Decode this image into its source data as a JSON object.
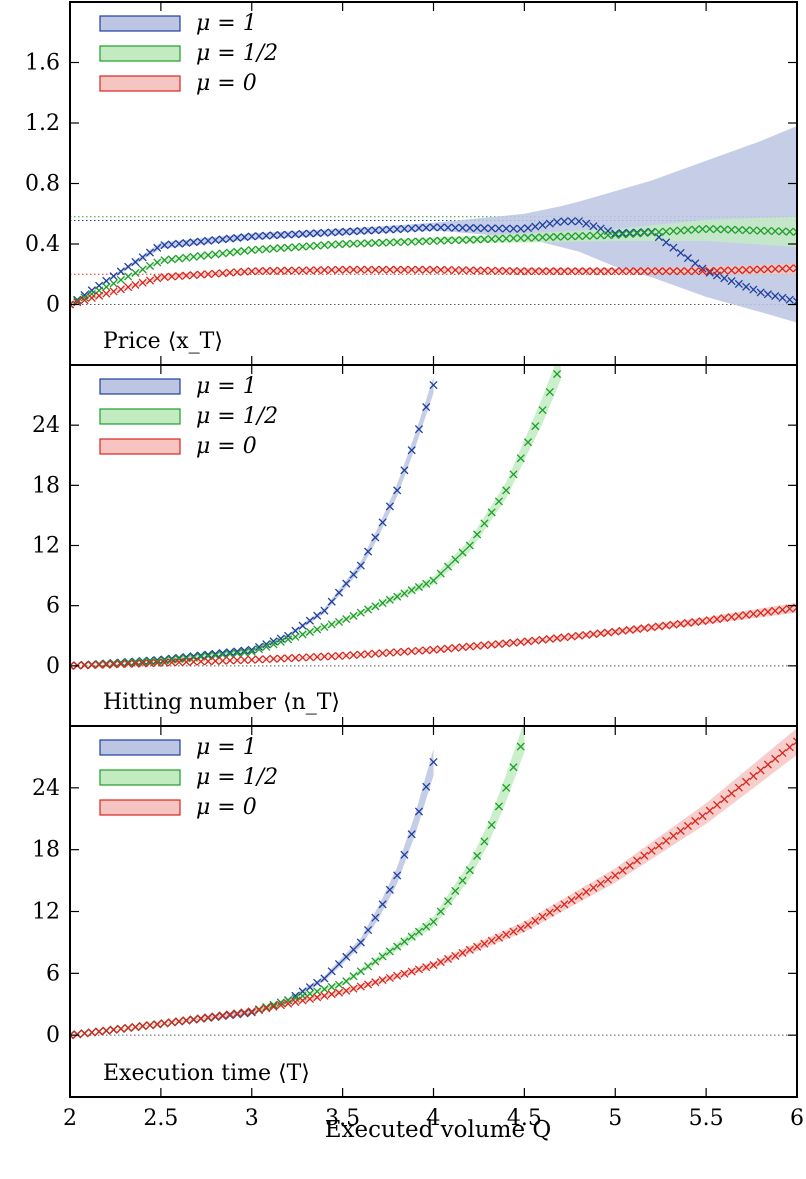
{
  "x_axis": {
    "label": "Executed volume Q",
    "range": [
      2,
      6
    ],
    "ticks": [
      2,
      2.5,
      3,
      3.5,
      4,
      4.5,
      5,
      5.5,
      6
    ],
    "tick_labels": [
      "2",
      "2.5",
      "3",
      "3.5",
      "4",
      "4.5",
      "5",
      "5.5",
      "6"
    ]
  },
  "colors": {
    "mu_1": "#1f3f9e",
    "mu_half": "#1f9e2a",
    "mu_0": "#d9261c",
    "mu_1_band": "#bcc6e3",
    "mu_half_band": "#c2ebc2",
    "mu_0_band": "#f6c5c2",
    "zero_line": "#555555"
  },
  "legend_labels": [
    "μ = 1",
    "μ = 1/2",
    "μ = 0"
  ],
  "chart_data": [
    {
      "type": "scatter",
      "title": "Price ⟨x_T⟩",
      "ylim": [
        -0.4,
        2.0
      ],
      "yticks": [
        0,
        0.4,
        0.8,
        1.2,
        1.6
      ],
      "ytick_labels": [
        "0",
        "0.4",
        "0.8",
        "1.2",
        "1.6"
      ],
      "reference_lines": [
        0,
        0.2,
        0.555,
        0.58
      ],
      "series": [
        {
          "name": "μ = 1",
          "color_key": "mu_1",
          "x": [
            2.0,
            2.5,
            3.0,
            3.5,
            4.0,
            4.5,
            4.7,
            4.8,
            5.0,
            5.2,
            5.5,
            5.8,
            6.0
          ],
          "y": [
            0.0,
            0.39,
            0.45,
            0.48,
            0.51,
            0.5,
            0.55,
            0.55,
            0.47,
            0.48,
            0.22,
            0.08,
            0.02
          ],
          "band_upper": [
            0.0,
            0.41,
            0.47,
            0.5,
            0.54,
            0.6,
            0.65,
            0.68,
            0.75,
            0.82,
            0.95,
            1.08,
            1.18
          ],
          "band_lower": [
            0.0,
            0.37,
            0.43,
            0.46,
            0.49,
            0.44,
            0.38,
            0.35,
            0.25,
            0.18,
            0.05,
            -0.05,
            -0.12
          ]
        },
        {
          "name": "μ = 1/2",
          "color_key": "mu_half",
          "x": [
            2.0,
            2.5,
            3.0,
            3.5,
            4.0,
            4.5,
            5.0,
            5.5,
            6.0
          ],
          "y": [
            0.0,
            0.29,
            0.36,
            0.4,
            0.42,
            0.44,
            0.46,
            0.5,
            0.48
          ],
          "band_upper": [
            0.0,
            0.3,
            0.37,
            0.41,
            0.44,
            0.47,
            0.5,
            0.56,
            0.58
          ],
          "band_lower": [
            0.0,
            0.28,
            0.35,
            0.39,
            0.41,
            0.41,
            0.42,
            0.42,
            0.38
          ]
        },
        {
          "name": "μ = 0",
          "color_key": "mu_0",
          "x": [
            2.0,
            2.5,
            3.0,
            3.5,
            4.0,
            4.5,
            5.0,
            5.5,
            6.0
          ],
          "y": [
            0.0,
            0.18,
            0.22,
            0.23,
            0.23,
            0.22,
            0.22,
            0.22,
            0.24
          ],
          "band_upper": [
            0.0,
            0.19,
            0.23,
            0.24,
            0.24,
            0.24,
            0.24,
            0.25,
            0.27
          ],
          "band_lower": [
            0.0,
            0.17,
            0.21,
            0.22,
            0.22,
            0.21,
            0.21,
            0.2,
            0.2
          ]
        }
      ]
    },
    {
      "type": "scatter",
      "title": "Hitting number ⟨n_T⟩",
      "ylim": [
        -6,
        30
      ],
      "yticks": [
        0,
        6,
        12,
        18,
        24
      ],
      "ytick_labels": [
        "0",
        "6",
        "12",
        "18",
        "24"
      ],
      "reference_lines": [
        0
      ],
      "series": [
        {
          "name": "μ = 1",
          "color_key": "mu_1",
          "x": [
            2.0,
            2.5,
            3.0,
            3.2,
            3.4,
            3.6,
            3.7,
            3.8,
            3.9,
            4.0
          ],
          "y": [
            0.0,
            0.6,
            1.6,
            3.0,
            5.5,
            10.0,
            13.5,
            17.5,
            22.5,
            28.0
          ],
          "band_upper": [
            0.0,
            0.65,
            1.7,
            3.15,
            5.75,
            10.4,
            14.0,
            18.1,
            23.2,
            28.8
          ],
          "band_lower": [
            0.0,
            0.55,
            1.5,
            2.85,
            5.25,
            9.6,
            13.0,
            16.9,
            21.8,
            27.2
          ]
        },
        {
          "name": "μ = 1/2",
          "color_key": "mu_half",
          "x": [
            2.0,
            2.5,
            3.0,
            3.5,
            4.0,
            4.2,
            4.4,
            4.5,
            4.6,
            4.7
          ],
          "y": [
            0.0,
            0.5,
            1.4,
            4.5,
            8.5,
            12.0,
            17.5,
            21.5,
            25.5,
            30.0
          ],
          "band_upper": [
            0.0,
            0.55,
            1.5,
            4.7,
            8.9,
            12.6,
            18.3,
            22.5,
            26.8,
            31.5
          ],
          "band_lower": [
            0.0,
            0.45,
            1.3,
            4.3,
            8.1,
            11.4,
            16.7,
            20.5,
            24.2,
            28.5
          ]
        },
        {
          "name": "μ = 0",
          "color_key": "mu_0",
          "x": [
            2.0,
            2.5,
            3.0,
            3.5,
            4.0,
            4.5,
            5.0,
            5.5,
            6.0
          ],
          "y": [
            0.0,
            0.3,
            0.6,
            1.0,
            1.6,
            2.4,
            3.4,
            4.5,
            5.8
          ],
          "band_upper": [
            0.0,
            0.35,
            0.65,
            1.08,
            1.72,
            2.58,
            3.65,
            4.85,
            6.3
          ],
          "band_lower": [
            0.0,
            0.25,
            0.55,
            0.92,
            1.48,
            2.22,
            3.15,
            4.15,
            5.3
          ]
        }
      ]
    },
    {
      "type": "scatter",
      "title": "Execution time ⟨T⟩",
      "ylim": [
        -6,
        30
      ],
      "yticks": [
        0,
        6,
        12,
        18,
        24
      ],
      "ytick_labels": [
        "0",
        "6",
        "12",
        "18",
        "24"
      ],
      "reference_lines": [
        0
      ],
      "series": [
        {
          "name": "μ = 1",
          "color_key": "mu_1",
          "x": [
            2.0,
            2.5,
            3.0,
            3.2,
            3.4,
            3.6,
            3.7,
            3.8,
            3.9,
            4.0
          ],
          "y": [
            0.0,
            1.1,
            2.2,
            3.4,
            5.5,
            9.0,
            12.0,
            15.5,
            20.5,
            26.5
          ],
          "band_upper": [
            0.0,
            1.15,
            2.3,
            3.55,
            5.75,
            9.4,
            12.6,
            16.3,
            21.5,
            27.8
          ],
          "band_lower": [
            0.0,
            1.05,
            2.1,
            3.25,
            5.25,
            8.6,
            11.4,
            14.7,
            19.5,
            25.2
          ]
        },
        {
          "name": "μ = 1/2",
          "color_key": "mu_half",
          "x": [
            2.0,
            2.5,
            3.0,
            3.5,
            4.0,
            4.2,
            4.3,
            4.4,
            4.5
          ],
          "y": [
            0.0,
            1.1,
            2.3,
            5.0,
            11.0,
            16.0,
            19.5,
            24.0,
            29.0
          ],
          "band_upper": [
            0.0,
            1.15,
            2.4,
            5.2,
            11.5,
            16.8,
            20.5,
            25.3,
            30.5
          ],
          "band_lower": [
            0.0,
            1.05,
            2.2,
            4.8,
            10.5,
            15.2,
            18.5,
            22.7,
            27.5
          ]
        },
        {
          "name": "μ = 0",
          "color_key": "mu_0",
          "x": [
            2.0,
            2.5,
            3.0,
            3.5,
            4.0,
            4.5,
            5.0,
            5.5,
            6.0
          ],
          "y": [
            0.0,
            1.1,
            2.3,
            4.2,
            6.8,
            10.5,
            15.5,
            21.5,
            28.5
          ],
          "band_upper": [
            0.0,
            1.15,
            2.4,
            4.4,
            7.1,
            11.0,
            16.2,
            22.5,
            29.8
          ],
          "band_lower": [
            0.0,
            1.05,
            2.2,
            4.0,
            6.5,
            10.0,
            14.8,
            20.5,
            27.2
          ]
        }
      ]
    }
  ]
}
